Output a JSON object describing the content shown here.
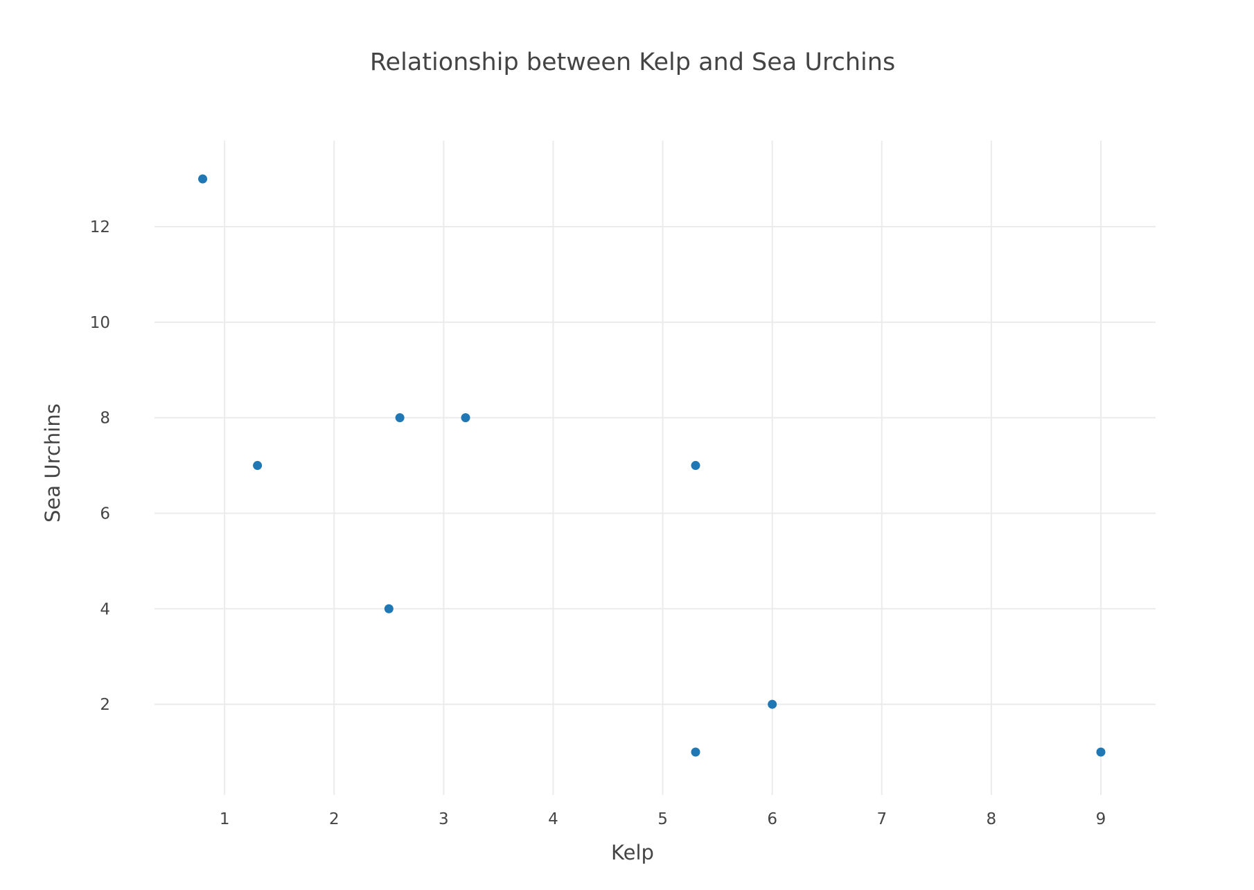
{
  "chart_data": {
    "type": "scatter",
    "title": "Relationship between Kelp and Sea Urchins",
    "xlabel": "Kelp",
    "ylabel": "Sea Urchins",
    "xlim": [
      0.36,
      9.5
    ],
    "ylim": [
      0.1,
      13.8
    ],
    "x_ticks": [
      1,
      2,
      3,
      4,
      5,
      6,
      7,
      8,
      9
    ],
    "y_ticks": [
      2,
      4,
      6,
      8,
      10,
      12
    ],
    "grid": true,
    "legend": "none",
    "marker_color": "#1f77b4",
    "points": [
      {
        "x": 0.8,
        "y": 13
      },
      {
        "x": 1.3,
        "y": 7
      },
      {
        "x": 2.5,
        "y": 4
      },
      {
        "x": 2.6,
        "y": 8
      },
      {
        "x": 3.2,
        "y": 8
      },
      {
        "x": 5.3,
        "y": 7
      },
      {
        "x": 5.3,
        "y": 1
      },
      {
        "x": 6.0,
        "y": 2
      },
      {
        "x": 9.0,
        "y": 1
      }
    ]
  }
}
